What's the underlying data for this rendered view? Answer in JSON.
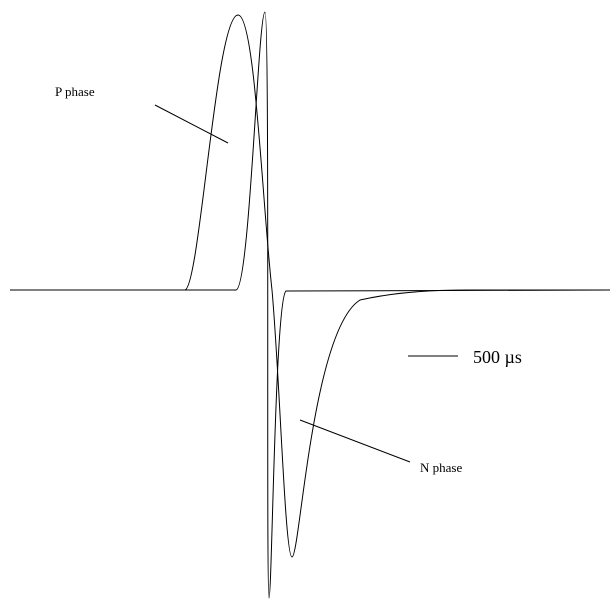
{
  "labels": {
    "p_phase": "P phase",
    "n_phase": "N phase",
    "scale_bar": "500 µs"
  }
}
